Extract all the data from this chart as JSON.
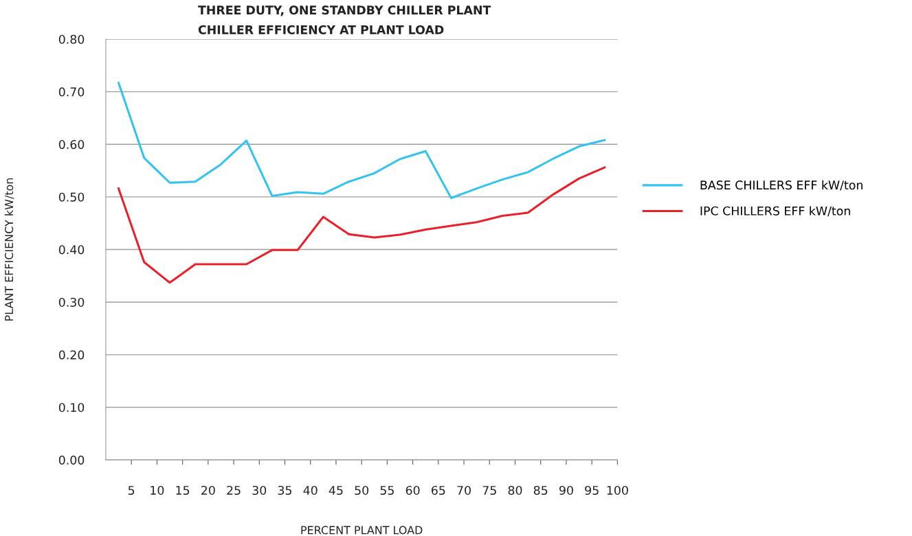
{
  "chart_data": {
    "type": "line",
    "title": "THREE DUTY, ONE STANDBY CHILLER PLANT\nCHILLER EFFICIENCY AT PLANT LOAD",
    "xlabel": "PERCENT PLANT LOAD",
    "ylabel": "PLANT EFFICIENCY kW/ton",
    "x": [
      2.5,
      7.5,
      12.5,
      17.5,
      22.5,
      27.5,
      32.5,
      37.5,
      42.5,
      47.5,
      52.5,
      57.5,
      62.5,
      67.5,
      72.5,
      77.5,
      82.5,
      87.5,
      92.5,
      97.5
    ],
    "series": [
      {
        "name": "BASE CHILLERS EFF kW/ton",
        "color": "#33c3f0",
        "values": [
          0.717,
          0.574,
          0.527,
          0.529,
          0.562,
          0.607,
          0.502,
          0.509,
          0.506,
          0.529,
          0.545,
          0.572,
          0.587,
          0.498,
          0.516,
          0.533,
          0.547,
          0.573,
          0.596,
          0.608
        ]
      },
      {
        "name": "IPC CHILLERS EFF kW/ton",
        "color": "#e8202a",
        "values": [
          0.516,
          0.376,
          0.337,
          0.372,
          0.372,
          0.372,
          0.399,
          0.399,
          0.462,
          0.429,
          0.423,
          0.428,
          0.438,
          0.445,
          0.452,
          0.464,
          0.47,
          0.505,
          0.535,
          0.556
        ]
      }
    ],
    "xlim": [
      0,
      100
    ],
    "xticks": [
      5,
      10,
      15,
      20,
      25,
      30,
      35,
      40,
      45,
      50,
      55,
      60,
      65,
      70,
      75,
      80,
      85,
      90,
      95,
      100
    ],
    "ylim": [
      0,
      0.8
    ],
    "yticks": [
      {
        "value": 0,
        "label": "0.00"
      },
      {
        "value": 0.1,
        "label": "0.10"
      },
      {
        "value": 0.2,
        "label": "0.20"
      },
      {
        "value": 0.3,
        "label": "0.30"
      },
      {
        "value": 0.4,
        "label": "0.40"
      },
      {
        "value": 0.5,
        "label": "0.50"
      },
      {
        "value": 0.6,
        "label": "0.60"
      },
      {
        "value": 0.7,
        "label": "0.70"
      },
      {
        "value": 0.8,
        "label": "0.80"
      }
    ],
    "grid": "y",
    "legend": "right",
    "marker": "none",
    "line_style": "solid"
  }
}
